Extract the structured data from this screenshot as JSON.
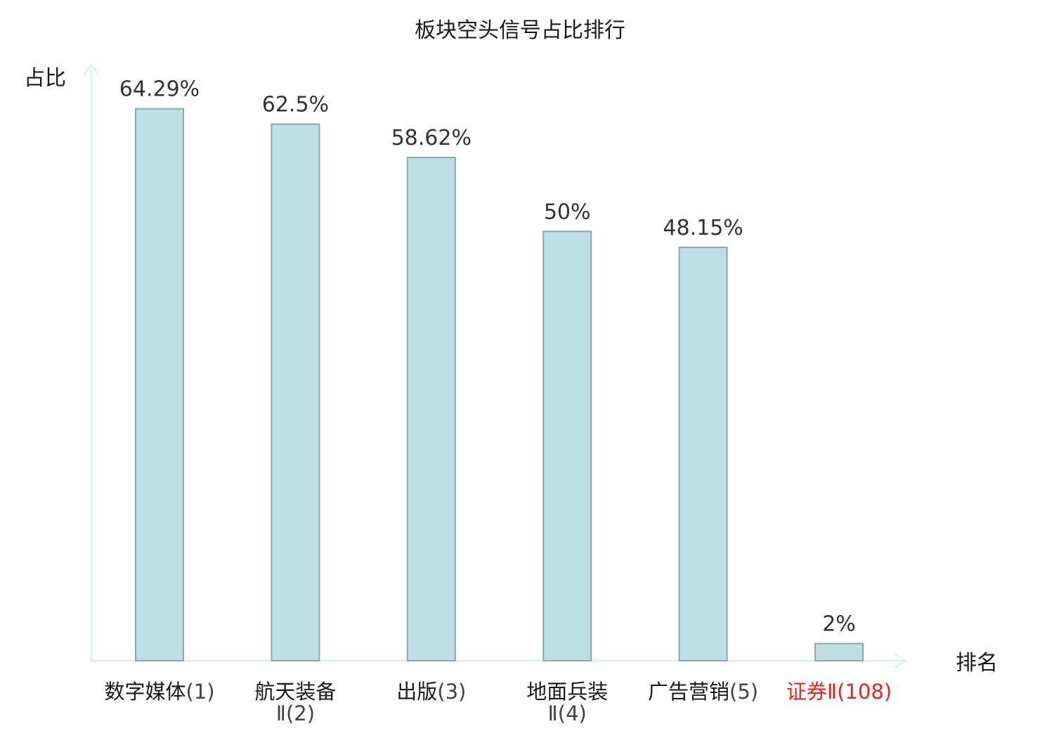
{
  "chart_data": {
    "type": "bar",
    "title": "板块空头信号占比排行",
    "ylabel": "占比",
    "xlabel": "排名",
    "unit": "%",
    "ylim": [
      0,
      70
    ],
    "grid": false,
    "legend": "none",
    "categories": [
      {
        "name": "数字媒体",
        "rank": "(1)",
        "wrap": false,
        "highlight": false
      },
      {
        "name": "航天装备",
        "rank": "Ⅱ(2)",
        "wrap": true,
        "highlight": false
      },
      {
        "name": "出版",
        "rank": "(3)",
        "wrap": false,
        "highlight": false
      },
      {
        "name": "地面兵装",
        "rank": "Ⅱ(4)",
        "wrap": true,
        "highlight": false
      },
      {
        "name": "广告营销",
        "rank": "(5)",
        "wrap": false,
        "highlight": false
      },
      {
        "name": "证券",
        "rank": "Ⅱ(108)",
        "wrap": false,
        "highlight": true
      }
    ],
    "values": [
      64.29,
      62.5,
      58.62,
      50,
      48.15,
      2
    ],
    "value_labels": [
      "64.29%",
      "62.5%",
      "58.62%",
      "50%",
      "48.15%",
      "2%"
    ],
    "colors": {
      "bar_fill": "#bce0e3",
      "bar_stroke": "#8fa7aa",
      "axis": "#e1f3f1",
      "text": "#1a1a1a",
      "rank_text": "#444444",
      "highlight": "#e8231e"
    }
  }
}
